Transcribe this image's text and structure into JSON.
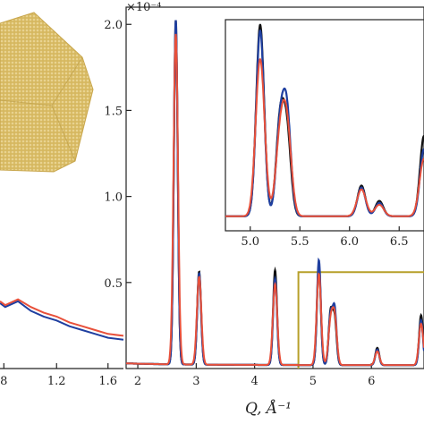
{
  "chart_data": [
    {
      "panel": "left-partial",
      "type": "line",
      "x_ticks": [
        "8",
        "1.2",
        "1.6"
      ],
      "series": [
        {
          "color": "#1f3fa0",
          "x": [
            0.76,
            0.8,
            0.9,
            1.0,
            1.1,
            1.2,
            1.3,
            1.4,
            1.5,
            1.6,
            1.72
          ],
          "y": [
            0.34,
            0.32,
            0.35,
            0.3,
            0.27,
            0.25,
            0.22,
            0.2,
            0.18,
            0.16,
            0.15
          ]
        },
        {
          "color": "#e8503a",
          "x": [
            0.76,
            0.8,
            0.9,
            1.0,
            1.1,
            1.2,
            1.3,
            1.4,
            1.5,
            1.6,
            1.72
          ],
          "y": [
            0.35,
            0.33,
            0.36,
            0.32,
            0.29,
            0.27,
            0.24,
            0.22,
            0.2,
            0.18,
            0.17
          ]
        }
      ]
    },
    {
      "panel": "main",
      "type": "line",
      "scale_label": "×10⁻⁴",
      "xlabel": "Q, Å⁻¹",
      "xlim": [
        1.8,
        6.9
      ],
      "ylim": [
        0,
        2.1
      ],
      "x_ticks": [
        2,
        3,
        4,
        5,
        6
      ],
      "y_ticks": [
        "0.5",
        "1.0",
        "1.5",
        "2.0"
      ],
      "inset_window": {
        "x": [
          4.75,
          6.9
        ],
        "y": [
          0,
          0.56
        ]
      },
      "peaks": [
        {
          "x": 2.65,
          "black": 2.0,
          "blue": 2.0,
          "red": 1.92
        },
        {
          "x": 3.05,
          "black": 0.54,
          "blue": 0.53,
          "red": 0.51
        },
        {
          "x": 4.35,
          "black": 0.55,
          "blue": 0.5,
          "red": 0.47
        },
        {
          "x": 5.1,
          "black": 0.58,
          "blue": 0.61,
          "red": 0.53
        },
        {
          "x": 5.3,
          "black": 0.3,
          "blue": 0.28,
          "red": 0.24
        },
        {
          "x": 5.37,
          "black": 0.27,
          "blue": 0.32,
          "red": 0.27
        },
        {
          "x": 6.1,
          "black": 0.1,
          "blue": 0.09,
          "red": 0.08
        },
        {
          "x": 6.85,
          "black": 0.29,
          "blue": 0.26,
          "red": 0.24
        }
      ]
    },
    {
      "panel": "inset",
      "type": "line",
      "xlim": [
        4.75,
        6.75
      ],
      "x_ticks": [
        "5.0",
        "5.5",
        "6.0",
        "6.5"
      ],
      "peaks": [
        {
          "x": 5.1,
          "black": 1.0,
          "blue": 0.97,
          "red": 0.82
        },
        {
          "x": 5.3,
          "black": 0.48,
          "blue": 0.45,
          "red": 0.38
        },
        {
          "x": 5.37,
          "black": 0.42,
          "blue": 0.52,
          "red": 0.44
        },
        {
          "x": 6.12,
          "black": 0.16,
          "blue": 0.15,
          "red": 0.14
        },
        {
          "x": 6.3,
          "black": 0.08,
          "blue": 0.07,
          "red": 0.06
        },
        {
          "x": 6.75,
          "black": 0.42,
          "blue": 0.35,
          "red": 0.3
        }
      ]
    }
  ],
  "colors": {
    "black": "#111111",
    "blue": "#1f3fa0",
    "red": "#e8503a",
    "inset_box": "#b7a02a",
    "particle": "#d9bd6a"
  },
  "illustration": {
    "icon": "nanoparticle-icon"
  }
}
